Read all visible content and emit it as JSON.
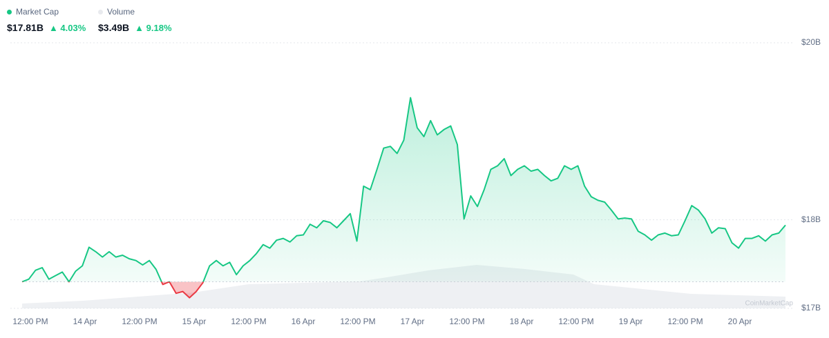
{
  "header": {
    "market_cap_value": "$17.81B",
    "market_cap_change": "4.03%",
    "volume_label": "Volume",
    "volume_value": "$3.49B",
    "volume_change": "9.18%"
  },
  "chart_data": {
    "type": "area",
    "series": [
      {
        "name": "Market Cap",
        "color": "#16c784",
        "down_color": "#ea3943",
        "values": [
          17.3,
          17.33,
          17.43,
          17.46,
          17.33,
          17.37,
          17.41,
          17.3,
          17.42,
          17.48,
          17.69,
          17.64,
          17.58,
          17.64,
          17.58,
          17.6,
          17.56,
          17.54,
          17.49,
          17.54,
          17.44,
          17.27,
          17.3,
          17.17,
          17.19,
          17.12,
          17.19,
          17.29,
          17.48,
          17.54,
          17.48,
          17.52,
          17.38,
          17.48,
          17.54,
          17.62,
          17.72,
          17.68,
          17.77,
          17.79,
          17.75,
          17.82,
          17.83,
          17.95,
          17.91,
          17.99,
          17.97,
          17.91,
          17.99,
          18.07,
          17.76,
          18.38,
          18.34,
          18.57,
          18.81,
          18.83,
          18.75,
          18.9,
          19.38,
          19.04,
          18.94,
          19.12,
          18.96,
          19.02,
          19.06,
          18.85,
          18.01,
          18.27,
          18.15,
          18.34,
          18.57,
          18.61,
          18.69,
          18.5,
          18.57,
          18.61,
          18.55,
          18.57,
          18.5,
          18.44,
          18.47,
          18.61,
          18.57,
          18.61,
          18.38,
          18.26,
          18.22,
          18.2,
          18.11,
          18.01,
          18.02,
          18.01,
          17.87,
          17.83,
          17.77,
          17.83,
          17.85,
          17.82,
          17.83,
          17.99,
          18.16,
          18.11,
          18.01,
          17.85,
          17.91,
          17.9,
          17.74,
          17.68,
          17.79,
          17.79,
          17.82,
          17.76,
          17.83,
          17.85,
          17.94
        ]
      }
    ],
    "x_labels": [
      "12:00 PM",
      "14 Apr",
      "12:00 PM",
      "15 Apr",
      "12:00 PM",
      "16 Apr",
      "12:00 PM",
      "17 Apr",
      "12:00 PM",
      "18 Apr",
      "12:00 PM",
      "19 Apr",
      "12:00 PM",
      "20 Apr"
    ],
    "ylim": [
      17,
      20
    ],
    "yticks": [
      {
        "value": 20,
        "label": "$20B"
      },
      {
        "value": 18,
        "label": "$18B"
      },
      {
        "value": 17,
        "label": "$17B"
      }
    ],
    "grid": true,
    "watermark": "CoinMarketCap"
  }
}
